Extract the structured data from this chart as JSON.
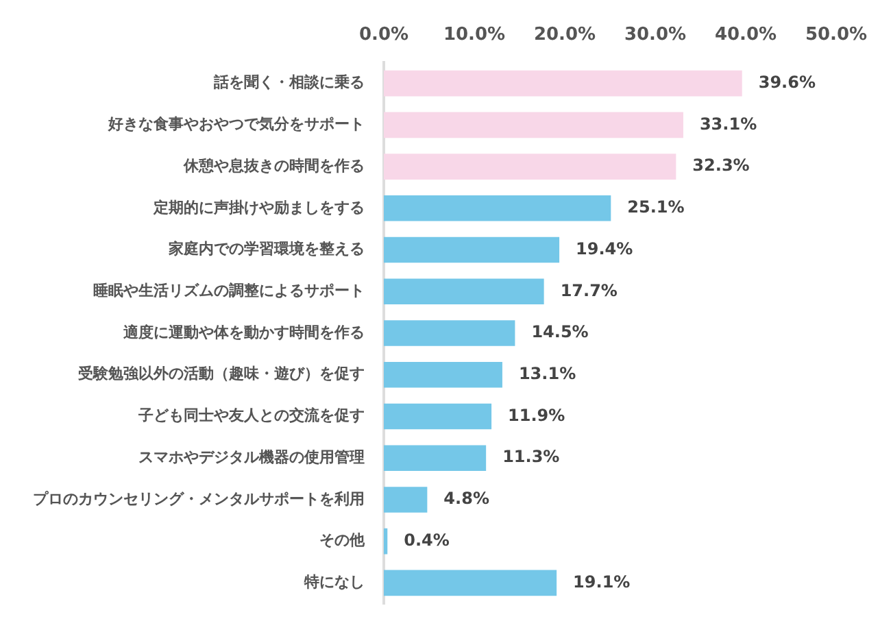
{
  "chart_data": {
    "type": "bar",
    "orientation": "horizontal",
    "categories": [
      "話を聞く・相談に乗る",
      "好きな食事やおやつで気分をサポート",
      "休憩や息抜きの時間を作る",
      "定期的に声掛けや励ましをする",
      "家庭内での学習環境を整える",
      "睡眠や生活リズムの調整によるサポート",
      "適度に運動や体を動かす時間を作る",
      "受験勉強以外の活動（趣味・遊び）を促す",
      "子ども同士や友人との交流を促す",
      "スマホやデジタル機器の使用管理",
      "プロのカウンセリング・メンタルサポートを利用",
      "その他",
      "特になし"
    ],
    "values": [
      39.6,
      33.1,
      32.3,
      25.1,
      19.4,
      17.7,
      14.5,
      13.1,
      11.9,
      11.3,
      4.8,
      0.4,
      19.1
    ],
    "colors": [
      "#f8d7e8",
      "#f8d7e8",
      "#f8d7e8",
      "#74c7e8",
      "#74c7e8",
      "#74c7e8",
      "#74c7e8",
      "#74c7e8",
      "#74c7e8",
      "#74c7e8",
      "#74c7e8",
      "#74c7e8",
      "#74c7e8"
    ],
    "value_labels": [
      "39.6%",
      "33.1%",
      "32.3%",
      "25.1%",
      "19.4%",
      "17.7%",
      "14.5%",
      "13.1%",
      "11.9%",
      "11.3%",
      "4.8%",
      "0.4%",
      "19.1%"
    ],
    "xlim": [
      0,
      50
    ],
    "xticks": [
      {
        "value": 0,
        "label": "0.0%"
      },
      {
        "value": 10,
        "label": "10.0%"
      },
      {
        "value": 20,
        "label": "20.0%"
      },
      {
        "value": 30,
        "label": "30.0%"
      },
      {
        "value": 40,
        "label": "40.0%"
      },
      {
        "value": 50,
        "label": "50.0%"
      }
    ],
    "grid": false,
    "legend": false
  }
}
